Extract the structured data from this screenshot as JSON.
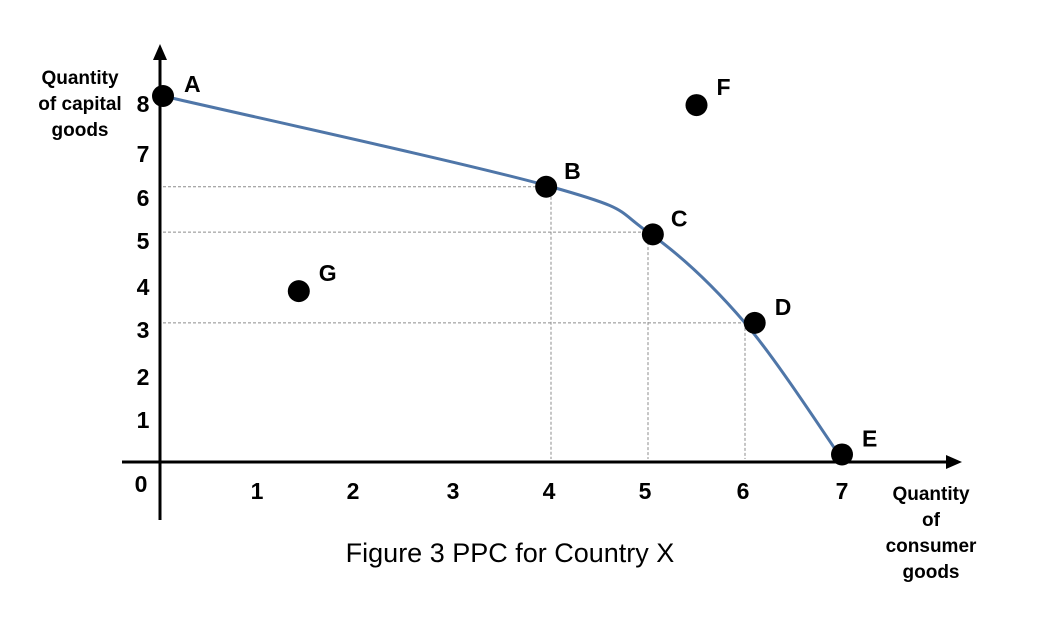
{
  "chart_data": {
    "type": "line",
    "title": "Figure 3 PPC for Country X",
    "ylabel": [
      "Quantity",
      "of capital",
      "goods"
    ],
    "xlabel": [
      "Quantity",
      "of",
      "consumer",
      "goods"
    ],
    "origin_label": "0",
    "x_ticks": [
      "1",
      "2",
      "3",
      "4",
      "5",
      "6",
      "7"
    ],
    "y_ticks": [
      "1",
      "2",
      "3",
      "4",
      "5",
      "6",
      "7",
      "8"
    ],
    "xlim": [
      0,
      7
    ],
    "ylim": [
      0,
      8
    ],
    "grid": false,
    "series": [
      {
        "curve_points": [
          {
            "x": 0,
            "y": 8
          },
          {
            "x": 4,
            "y": 6
          },
          {
            "x": 5,
            "y": 5
          },
          {
            "x": 6,
            "y": 3
          },
          {
            "x": 7,
            "y": 0
          }
        ]
      }
    ],
    "points": [
      {
        "label": "A",
        "x": 0,
        "y": 8
      },
      {
        "label": "B",
        "x": 3.95,
        "y": 6
      },
      {
        "label": "C",
        "x": 5.05,
        "y": 4.95
      },
      {
        "label": "D",
        "x": 6.1,
        "y": 3
      },
      {
        "label": "E",
        "x": 7.0,
        "y": 0.1
      },
      {
        "label": "F",
        "x": 5.5,
        "y": 7.8
      },
      {
        "label": "G",
        "x": 1.4,
        "y": 3.7
      }
    ],
    "guides": [
      {
        "x": 4,
        "y": 6
      },
      {
        "x": 5,
        "y": 5
      },
      {
        "x": 6,
        "y": 3
      }
    ],
    "colors": {
      "curve": "#4f76a8",
      "points": "#000000",
      "axes": "#000000",
      "guides": "#8c8c8c"
    }
  }
}
